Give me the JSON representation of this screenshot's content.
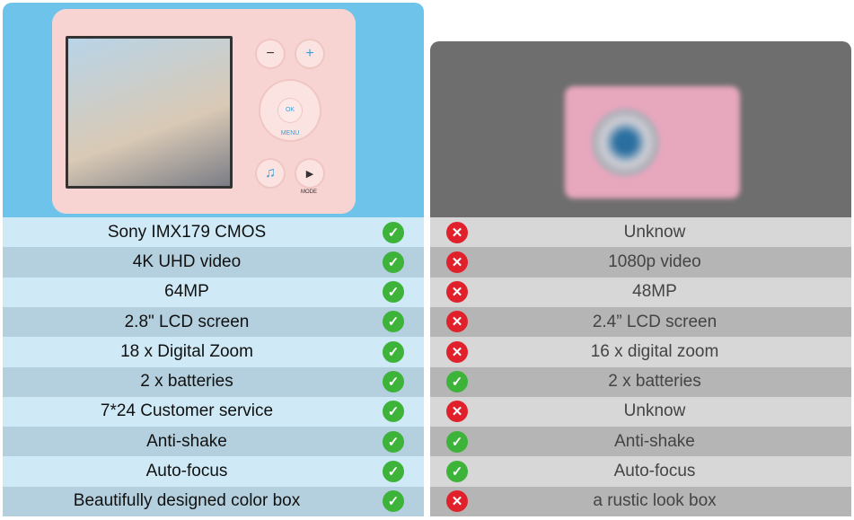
{
  "left": {
    "product": "pink compact camera",
    "rows": [
      {
        "label": "Sony IMX179 CMOS",
        "mark": "check"
      },
      {
        "label": "4K UHD video",
        "mark": "check"
      },
      {
        "label": "64MP",
        "mark": "check"
      },
      {
        "label": "2.8\" LCD screen",
        "mark": "check"
      },
      {
        "label": "18 x Digital Zoom",
        "mark": "check"
      },
      {
        "label": "2 x batteries",
        "mark": "check"
      },
      {
        "label": "7*24 Customer service",
        "mark": "check"
      },
      {
        "label": "Anti-shake",
        "mark": "check"
      },
      {
        "label": "Auto-focus",
        "mark": "check"
      },
      {
        "label": "Beautifully designed color box",
        "mark": "check"
      }
    ],
    "camera": {
      "ok_label": "OK MENU",
      "mode_label": "MODE"
    }
  },
  "right": {
    "rows": [
      {
        "label": "Unknow",
        "mark": "cross"
      },
      {
        "label": "1080p video",
        "mark": "cross"
      },
      {
        "label": "48MP",
        "mark": "cross"
      },
      {
        "label": "2.4” LCD screen",
        "mark": "cross"
      },
      {
        "label": "16 x digital zoom",
        "mark": "cross"
      },
      {
        "label": "2 x batteries",
        "mark": "check"
      },
      {
        "label": "Unknow",
        "mark": "cross"
      },
      {
        "label": "Anti-shake",
        "mark": "check"
      },
      {
        "label": "Auto-focus",
        "mark": "check"
      },
      {
        "label": "a rustic look box",
        "mark": "cross"
      }
    ]
  },
  "colors": {
    "check": "#3db33a",
    "cross": "#e0202a",
    "left_header": "#6ec3ea",
    "right_header": "#6e6e6e"
  }
}
